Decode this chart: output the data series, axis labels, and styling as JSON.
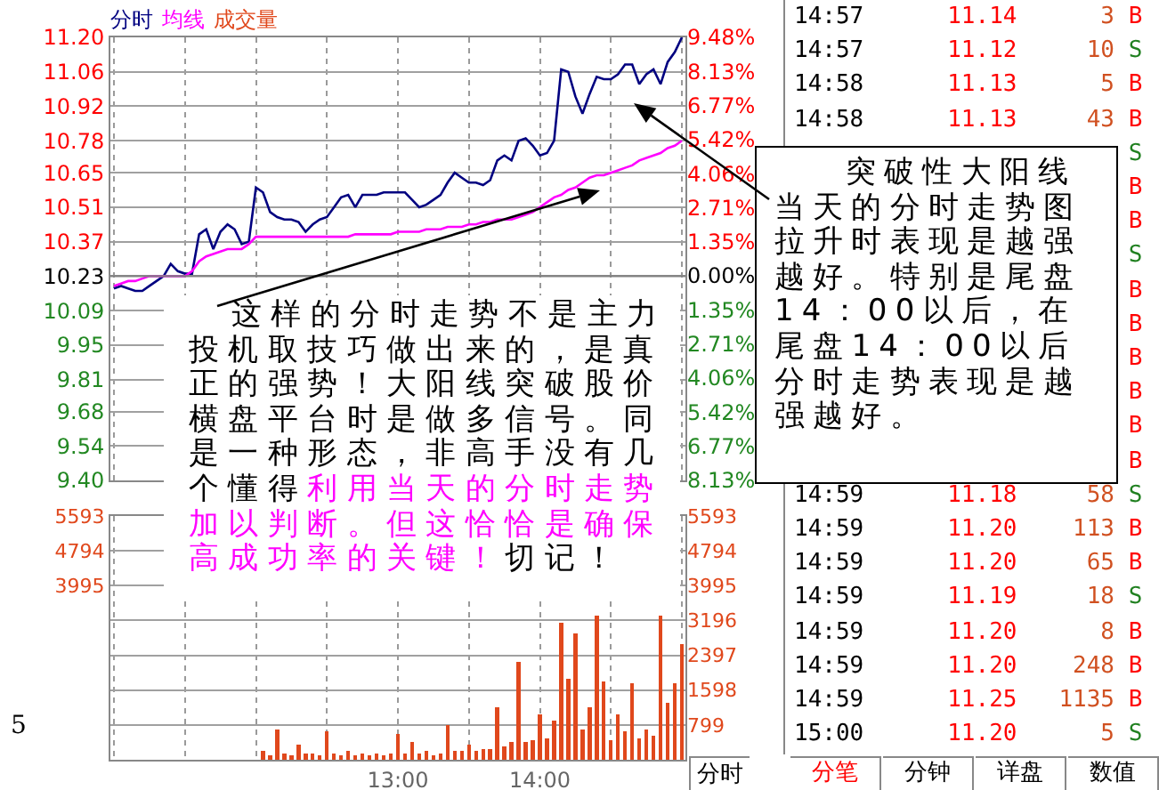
{
  "chart_data": [
    {
      "type": "line",
      "legend": "top left",
      "grid": true,
      "tick_labels": "y",
      "categories": [
        null,
        null,
        null,
        null,
        null,
        null,
        null,
        null,
        null,
        null,
        null,
        null,
        null,
        null,
        null,
        null,
        null,
        null,
        null,
        null,
        null,
        null,
        null,
        null,
        null,
        null,
        null,
        null,
        null,
        null,
        null,
        null,
        null,
        null,
        null,
        null,
        null,
        null,
        null,
        null,
        null,
        null,
        null,
        null,
        null,
        null,
        null,
        null,
        null,
        null,
        null,
        null,
        null,
        null,
        null,
        null,
        null,
        null,
        null,
        null,
        null,
        null,
        null,
        null,
        null,
        null,
        null,
        null,
        null,
        null,
        null,
        null,
        null,
        null,
        null,
        null,
        null,
        null,
        null,
        null,
        null
      ],
      "ylim": [
        9.4,
        11.2
      ],
      "yticks": [
        {
          "value": 11.2,
          "label": "11.20"
        },
        11.06,
        10.92,
        10.78,
        10.65,
        10.51,
        10.37,
        10.23,
        10.09,
        9.95,
        9.81,
        9.68,
        9.54,
        {
          "value": 9.4,
          "label": "9.40"
        }
      ],
      "y2lim": [
        -8.13,
        9.48
      ],
      "y2ticks": [
        {
          "value": 9.48,
          "label": "9.48%"
        },
        {
          "value": 8.13,
          "label": "8.13%"
        },
        {
          "value": 6.77,
          "label": "6.77%"
        },
        {
          "value": 5.42,
          "label": "5.42%"
        },
        {
          "value": 4.06,
          "label": "4.06%"
        },
        {
          "value": 2.71,
          "label": "2.71%"
        },
        {
          "value": 1.35,
          "label": "1.35%"
        },
        {
          "value": 0,
          "label": "0.00%"
        },
        {
          "value": -1.35,
          "label": "1.35%"
        },
        {
          "value": -2.71,
          "label": "2.71%"
        },
        {
          "value": -4.06,
          "label": "4.06%"
        },
        {
          "value": -5.42,
          "label": "5.42%"
        },
        {
          "value": -6.77,
          "label": "6.77%"
        },
        {
          "value": -8.13,
          "label": "8.13%"
        }
      ],
      "ref_lines": [
        {
          "axis": "y",
          "value": 10.23,
          "color": "#808080"
        }
      ],
      "series": [
        {
          "name": "分时",
          "color": "#000080",
          "values": [
            10.18,
            10.19,
            10.18,
            10.17,
            10.17,
            10.19,
            10.21,
            10.23,
            10.28,
            10.25,
            10.24,
            10.24,
            10.4,
            10.42,
            10.34,
            10.41,
            10.44,
            10.42,
            10.36,
            10.37,
            10.59,
            10.57,
            10.49,
            10.47,
            10.46,
            10.46,
            10.45,
            10.41,
            10.44,
            10.46,
            10.47,
            10.51,
            10.55,
            10.56,
            10.51,
            10.56,
            10.56,
            10.56,
            10.57,
            10.57,
            10.57,
            10.57,
            10.54,
            10.51,
            10.52,
            10.54,
            10.56,
            10.61,
            10.65,
            10.63,
            10.61,
            10.61,
            10.6,
            10.62,
            10.7,
            10.72,
            10.7,
            10.78,
            10.79,
            10.76,
            10.72,
            10.73,
            10.78,
            11.07,
            11.06,
            10.96,
            10.89,
            10.97,
            11.04,
            11.03,
            11.03,
            11.05,
            11.09,
            11.09,
            11.01,
            11.05,
            11.07,
            11.01,
            11.1,
            11.14,
            11.2
          ]
        },
        {
          "name": "均线",
          "color": "#ff00ff",
          "values": [
            10.19,
            10.2,
            10.21,
            10.21,
            10.22,
            10.23,
            10.23,
            10.23,
            10.23,
            10.23,
            10.23,
            10.25,
            10.29,
            10.31,
            10.32,
            10.33,
            10.34,
            10.34,
            10.34,
            10.36,
            10.39,
            10.39,
            10.39,
            10.39,
            10.39,
            10.39,
            10.39,
            10.39,
            10.39,
            10.39,
            10.39,
            10.39,
            10.39,
            10.39,
            10.4,
            10.4,
            10.4,
            10.4,
            10.4,
            10.4,
            10.41,
            10.41,
            10.41,
            10.41,
            10.42,
            10.42,
            10.42,
            10.43,
            10.43,
            10.43,
            10.44,
            10.44,
            10.45,
            10.45,
            10.46,
            10.46,
            10.46,
            10.47,
            10.48,
            10.49,
            10.51,
            10.53,
            10.55,
            10.56,
            10.58,
            10.59,
            10.61,
            10.63,
            10.64,
            10.64,
            10.65,
            10.66,
            10.67,
            10.68,
            10.7,
            10.71,
            10.72,
            10.73,
            10.75,
            10.76,
            10.78
          ]
        }
      ],
      "annotations": [
        "这样的分时走势不是主力投机取技巧做出来的，是真正的强势！大阳线突破股价横盘平台时是做多信号。同是一种形态，非高手没有几个懂得",
        "利用当天的分时走势加以判断。但这恰恰是确保高成功率的关键！",
        "切记！",
        "突破性大阳线当天的分时走势图拉升时表现是越强越好。特别是尾盘14：00以后，在尾盘14：00以后分时走势表现是越强越好。",
        "分时",
        "5"
      ]
    },
    {
      "type": "bar",
      "legend": "top left",
      "grid": true,
      "categories": [
        null,
        null,
        null,
        null,
        null,
        null,
        null,
        null,
        null,
        null,
        null,
        null,
        null,
        null,
        null,
        null,
        null,
        null,
        null,
        null,
        null,
        null,
        null,
        null,
        null,
        null,
        null,
        null,
        null,
        null,
        null,
        null,
        null,
        null,
        null,
        null,
        null,
        null,
        null,
        null,
        "13:00",
        null,
        null,
        null,
        null,
        null,
        null,
        null,
        null,
        null,
        null,
        null,
        null,
        null,
        null,
        null,
        null,
        null,
        null,
        null,
        "14:00",
        null,
        null,
        null,
        null,
        null,
        null,
        null,
        null,
        null,
        null,
        null,
        null,
        null,
        null,
        null,
        null,
        null,
        null,
        null,
        null
      ],
      "ylim": [
        0,
        5593
      ],
      "yticks": [
        5593,
        4794,
        3995
      ],
      "y2lim": [
        0,
        5593
      ],
      "y2ticks": [
        5593,
        4794,
        3995,
        3196,
        2397,
        1598,
        799
      ],
      "series": [
        {
          "name": "成交量",
          "color": "#e0481c",
          "values": [
            null,
            null,
            null,
            null,
            null,
            null,
            null,
            null,
            null,
            null,
            null,
            null,
            null,
            null,
            null,
            null,
            null,
            null,
            null,
            null,
            null,
            200,
            100,
            700,
            150,
            100,
            350,
            150,
            150,
            100,
            650,
            150,
            100,
            200,
            100,
            150,
            100,
            150,
            100,
            150,
            600,
            150,
            400,
            150,
            200,
            100,
            150,
            800,
            200,
            200,
            350,
            200,
            250,
            250,
            1200,
            300,
            400,
            2250,
            400,
            450,
            1050,
            500,
            900,
            3150,
            1850,
            2900,
            700,
            1200,
            3300,
            1800,
            450,
            1050,
            650,
            1750,
            500,
            700,
            550,
            3300,
            1300,
            1750,
            2650
          ]
        }
      ]
    },
    {
      "type": "other",
      "annotations": [
        "14:57 11.14 3 B",
        "14:57 11.12 10 S",
        "14:58 11.13 5 B",
        "14:58 11.13 43 B",
        "S",
        "B",
        "B",
        "S",
        "B",
        "B",
        "B",
        "B",
        "B",
        "B",
        "14:59 11.18 58 S",
        "14:59 11.20 113 B",
        "14:59 11.20 65 B",
        "14:59 11.19 18 S",
        "14:59 11.20 8 B",
        "14:59 11.20 248 B",
        "14:59 11.25 1135 B",
        "15:00 11.20 5 S"
      ],
      "colors": [
        "#ff0000",
        "#208020",
        "#ff0000",
        "#ff0000",
        "#208020",
        "#ff0000",
        "#ff0000",
        "#208020",
        "#ff0000",
        "#ff0000",
        "#ff0000",
        "#ff0000",
        "#ff0000",
        "#ff0000",
        "#208020",
        "#ff0000",
        "#ff0000",
        "#208020",
        "#ff0000",
        "#ff0000",
        "#ff0000",
        "#208020"
      ],
      "categories": [
        "分笔",
        "分钟",
        "详盘",
        "数值"
      ]
    }
  ]
}
